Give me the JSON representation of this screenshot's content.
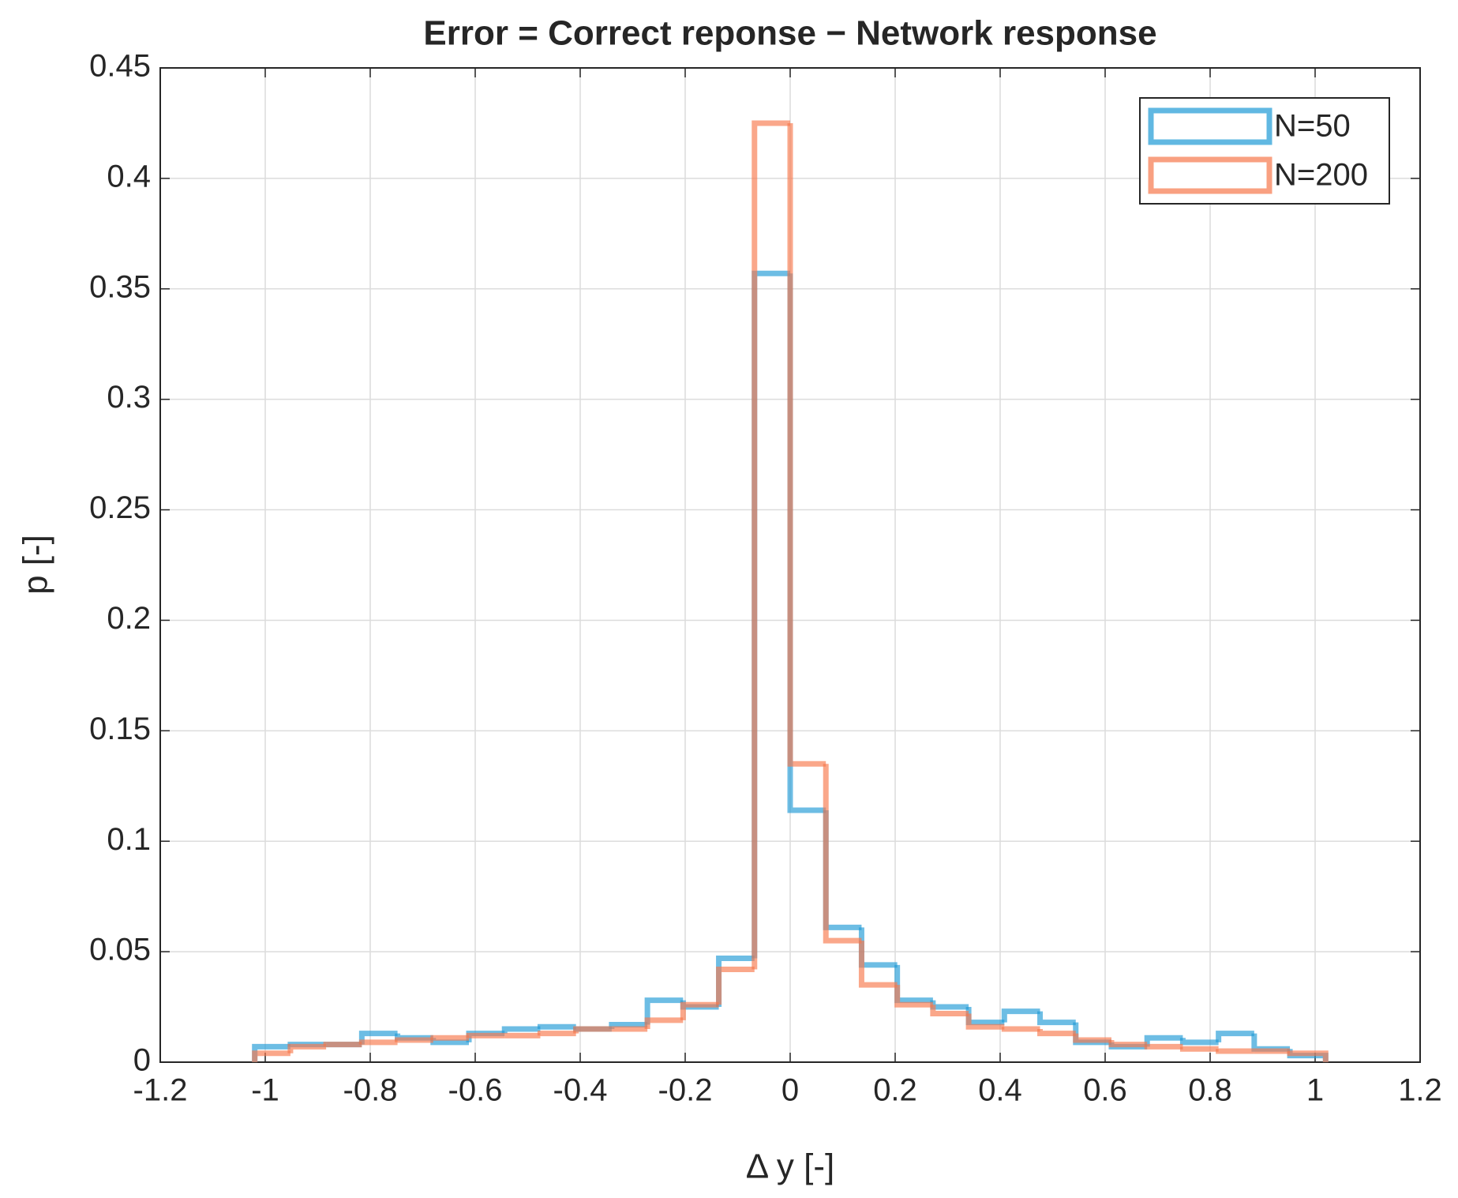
{
  "chart_data": {
    "type": "histogram",
    "title": "Error = Correct reponse − Network response",
    "x_label": "Δ y [-]",
    "y_label": "p [-]",
    "bins": [
      -1.02,
      -0.952,
      -0.884,
      -0.816,
      -0.748,
      -0.68,
      -0.612,
      -0.544,
      -0.476,
      -0.408,
      -0.34,
      -0.272,
      -0.204,
      -0.136,
      -0.068,
      0,
      0.068,
      0.136,
      0.204,
      0.272,
      0.34,
      0.408,
      0.476,
      0.544,
      0.612,
      0.68,
      0.748,
      0.816,
      0.884,
      0.952,
      1.02
    ],
    "series": [
      {
        "name": "N=50",
        "color": "#1e9ad6",
        "values": [
          0.007,
          0.008,
          0.008,
          0.013,
          0.011,
          0.009,
          0.013,
          0.015,
          0.016,
          0.015,
          0.017,
          0.028,
          0.025,
          0.047,
          0.357,
          0.114,
          0.061,
          0.044,
          0.028,
          0.025,
          0.018,
          0.023,
          0.018,
          0.009,
          0.007,
          0.011,
          0.009,
          0.013,
          0.006,
          0.003
        ]
      },
      {
        "name": "N=200",
        "color": "#f7784c",
        "values": [
          0.004,
          0.007,
          0.008,
          0.009,
          0.01,
          0.011,
          0.012,
          0.012,
          0.013,
          0.015,
          0.015,
          0.019,
          0.026,
          0.042,
          0.425,
          0.135,
          0.055,
          0.035,
          0.026,
          0.022,
          0.016,
          0.015,
          0.013,
          0.01,
          0.008,
          0.007,
          0.006,
          0.005,
          0.005,
          0.004
        ]
      }
    ],
    "xlim": [
      -1.2,
      1.2
    ],
    "xticks": [
      -1.2,
      -1,
      -0.8,
      -0.6,
      -0.4,
      -0.2,
      0,
      0.2,
      0.4,
      0.6,
      0.8,
      1,
      1.2
    ],
    "ylim": [
      0,
      0.45
    ],
    "yticks": [
      0,
      0.05,
      0.1,
      0.15,
      0.2,
      0.25,
      0.3,
      0.35,
      0.4,
      0.45
    ],
    "grid": true,
    "legend": "northeast"
  }
}
